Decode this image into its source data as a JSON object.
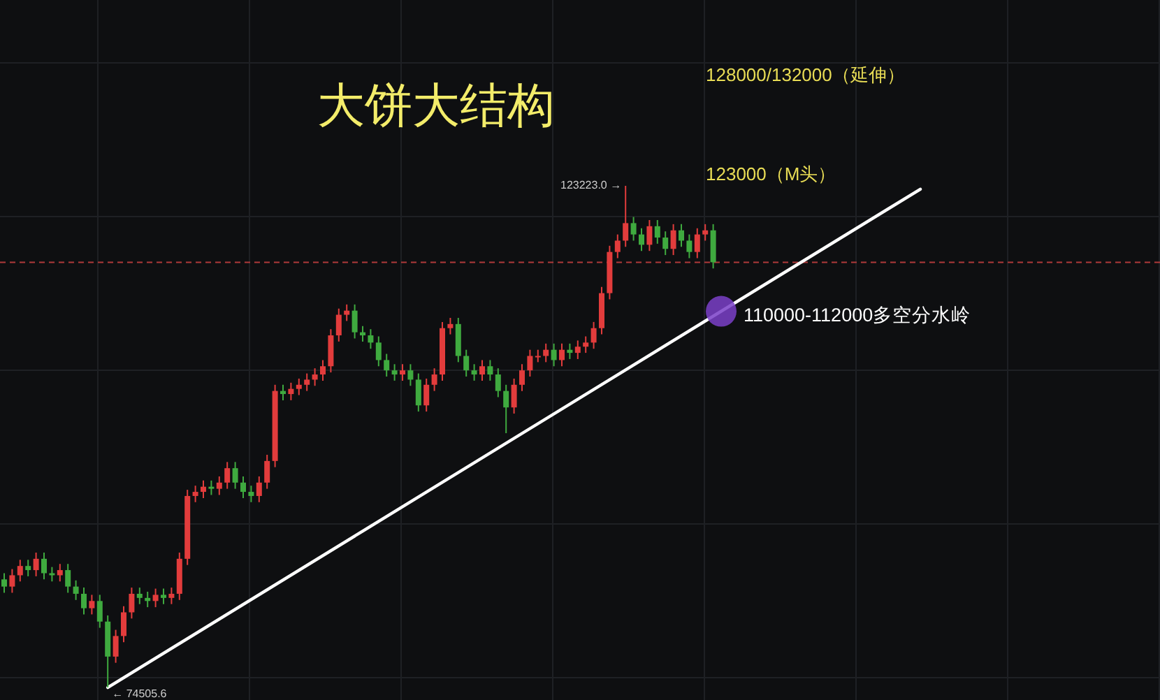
{
  "chart_data": {
    "type": "candlestick",
    "title": "大饼大结构",
    "categories": [
      null,
      null,
      null,
      null,
      null,
      null,
      null,
      null,
      null,
      null,
      null,
      null,
      null,
      null,
      null,
      null,
      null,
      null,
      null,
      null,
      null,
      null,
      null,
      null,
      null,
      null,
      null,
      null,
      null,
      null,
      null,
      null,
      null,
      null,
      null,
      null,
      null,
      null,
      null,
      null,
      null,
      null,
      null,
      null,
      null,
      null,
      null,
      null,
      null,
      null,
      null,
      null,
      null,
      null,
      null,
      null,
      null,
      null,
      null,
      null,
      null,
      null,
      null,
      null,
      null,
      null,
      null,
      null,
      null,
      null,
      null,
      null,
      null,
      null,
      null,
      null,
      null,
      null,
      null,
      null,
      null,
      null,
      null,
      null,
      null,
      null,
      null,
      null,
      null,
      null,
      null,
      null,
      null,
      null,
      null,
      null,
      null,
      null,
      null,
      null,
      null,
      null,
      null,
      null,
      null,
      null,
      null,
      null,
      null,
      null,
      null,
      null,
      null,
      null,
      null,
      null
    ],
    "ohlc": [
      [
        85000,
        85600,
        83700,
        84300
      ],
      [
        84300,
        86000,
        83700,
        85400
      ],
      [
        85400,
        86900,
        84800,
        86300
      ],
      [
        86300,
        86900,
        85300,
        85900
      ],
      [
        85900,
        87600,
        85300,
        87000
      ],
      [
        87000,
        87600,
        85000,
        85600
      ],
      [
        85600,
        86200,
        84800,
        85400
      ],
      [
        85400,
        86500,
        84800,
        85900
      ],
      [
        85900,
        86500,
        83700,
        84300
      ],
      [
        84300,
        84900,
        83000,
        83600
      ],
      [
        83600,
        84200,
        81600,
        82200
      ],
      [
        82200,
        83500,
        81600,
        82900
      ],
      [
        82900,
        83500,
        80300,
        80900
      ],
      [
        80900,
        81500,
        74505.6,
        77500
      ],
      [
        77500,
        80100,
        76900,
        79500
      ],
      [
        79500,
        82400,
        78900,
        81800
      ],
      [
        81800,
        84200,
        81200,
        83600
      ],
      [
        83600,
        84200,
        82600,
        83200
      ],
      [
        83200,
        83800,
        82300,
        82900
      ],
      [
        82900,
        84100,
        82300,
        83500
      ],
      [
        83500,
        84100,
        82600,
        83200
      ],
      [
        83200,
        84200,
        82600,
        83600
      ],
      [
        83600,
        87600,
        83000,
        87000
      ],
      [
        87000,
        93700,
        86400,
        93100
      ],
      [
        93100,
        94100,
        92500,
        93500
      ],
      [
        93500,
        94600,
        92900,
        94000
      ],
      [
        94000,
        94600,
        93200,
        93800
      ],
      [
        93800,
        95000,
        93200,
        94400
      ],
      [
        94400,
        96400,
        93800,
        95800
      ],
      [
        95800,
        96400,
        93800,
        94400
      ],
      [
        94400,
        95000,
        92900,
        93500
      ],
      [
        93500,
        94100,
        92500,
        93100
      ],
      [
        93100,
        95000,
        92500,
        94400
      ],
      [
        94400,
        97100,
        93800,
        96500
      ],
      [
        96500,
        103900,
        95900,
        103300
      ],
      [
        103300,
        103900,
        102400,
        103000
      ],
      [
        103000,
        104100,
        102400,
        103500
      ],
      [
        103500,
        104500,
        102900,
        103900
      ],
      [
        103900,
        105000,
        103300,
        104400
      ],
      [
        104400,
        105500,
        103800,
        104900
      ],
      [
        104900,
        106300,
        104300,
        105700
      ],
      [
        105700,
        109300,
        105100,
        108700
      ],
      [
        108700,
        111300,
        108100,
        110700
      ],
      [
        110700,
        111700,
        110100,
        111100
      ],
      [
        111100,
        111700,
        108400,
        109000
      ],
      [
        109000,
        109600,
        108100,
        108700
      ],
      [
        108700,
        109300,
        107400,
        108000
      ],
      [
        108000,
        108600,
        105700,
        106300
      ],
      [
        106300,
        106900,
        104700,
        105300
      ],
      [
        105300,
        105900,
        104300,
        104900
      ],
      [
        104900,
        105900,
        104300,
        105300
      ],
      [
        105300,
        105900,
        103800,
        104400
      ],
      [
        104400,
        105000,
        101300,
        101900
      ],
      [
        101900,
        104500,
        101300,
        103900
      ],
      [
        103900,
        105500,
        103300,
        104900
      ],
      [
        104900,
        110000,
        104300,
        109400
      ],
      [
        109400,
        110400,
        108800,
        109800
      ],
      [
        109800,
        110400,
        106100,
        106700
      ],
      [
        106700,
        107300,
        104700,
        105300
      ],
      [
        105300,
        105900,
        104300,
        104900
      ],
      [
        104900,
        106300,
        104300,
        105700
      ],
      [
        105700,
        106300,
        104300,
        104900
      ],
      [
        104900,
        105500,
        102700,
        103300
      ],
      [
        103300,
        103900,
        99200,
        101700
      ],
      [
        101700,
        104500,
        101100,
        103900
      ],
      [
        103900,
        105900,
        103300,
        105300
      ],
      [
        105300,
        107300,
        104700,
        106700
      ],
      [
        106700,
        107300,
        106100,
        106700
      ],
      [
        106700,
        107900,
        106100,
        107300
      ],
      [
        107300,
        107900,
        105700,
        106300
      ],
      [
        106300,
        107900,
        105700,
        107300
      ],
      [
        107300,
        107900,
        106400,
        107000
      ],
      [
        107000,
        108200,
        106400,
        107600
      ],
      [
        107600,
        108600,
        107000,
        108000
      ],
      [
        108000,
        110000,
        107400,
        109400
      ],
      [
        109400,
        113400,
        108800,
        112800
      ],
      [
        112800,
        117400,
        112200,
        116800
      ],
      [
        116800,
        118500,
        116200,
        117900
      ],
      [
        117900,
        123223,
        117300,
        119600
      ],
      [
        119600,
        120200,
        117900,
        118500
      ],
      [
        118500,
        119100,
        116900,
        117500
      ],
      [
        117500,
        119900,
        116900,
        119300
      ],
      [
        119300,
        119900,
        117600,
        118200
      ],
      [
        118200,
        118800,
        116500,
        117100
      ],
      [
        117100,
        119500,
        116500,
        118900
      ],
      [
        118900,
        119500,
        117300,
        117900
      ],
      [
        117900,
        118500,
        116200,
        116800
      ],
      [
        116800,
        119100,
        116200,
        118500
      ],
      [
        118500,
        119500,
        117900,
        118900
      ],
      [
        118900,
        119500,
        115200,
        115800
      ],
      null,
      null,
      null,
      null,
      null,
      null,
      null,
      null,
      null,
      null,
      null,
      null,
      null,
      null,
      null,
      null,
      null,
      null,
      null,
      null,
      null,
      null,
      null,
      null,
      null,
      null
    ],
    "colors": [
      "#3faa3f",
      "#e23c3c",
      "#e23c3c",
      "#3faa3f",
      "#e23c3c",
      "#3faa3f",
      "#3faa3f",
      "#e23c3c",
      "#3faa3f",
      "#3faa3f",
      "#3faa3f",
      "#e23c3c",
      "#3faa3f",
      "#3faa3f",
      "#e23c3c",
      "#e23c3c",
      "#e23c3c",
      "#3faa3f",
      "#3faa3f",
      "#e23c3c",
      "#3faa3f",
      "#e23c3c",
      "#e23c3c",
      "#e23c3c",
      "#e23c3c",
      "#e23c3c",
      "#3faa3f",
      "#e23c3c",
      "#e23c3c",
      "#3faa3f",
      "#3faa3f",
      "#3faa3f",
      "#e23c3c",
      "#e23c3c",
      "#e23c3c",
      "#3faa3f",
      "#e23c3c",
      "#e23c3c",
      "#e23c3c",
      "#e23c3c",
      "#e23c3c",
      "#e23c3c",
      "#e23c3c",
      "#e23c3c",
      "#3faa3f",
      "#3faa3f",
      "#3faa3f",
      "#3faa3f",
      "#3faa3f",
      "#3faa3f",
      "#e23c3c",
      "#3faa3f",
      "#3faa3f",
      "#e23c3c",
      "#e23c3c",
      "#e23c3c",
      "#e23c3c",
      "#3faa3f",
      "#3faa3f",
      "#3faa3f",
      "#e23c3c",
      "#3faa3f",
      "#3faa3f",
      "#3faa3f",
      "#e23c3c",
      "#e23c3c",
      "#e23c3c",
      "#e23c3c",
      "#e23c3c",
      "#3faa3f",
      "#e23c3c",
      "#3faa3f",
      "#e23c3c",
      "#e23c3c",
      "#e23c3c",
      "#e23c3c",
      "#e23c3c",
      "#e23c3c",
      "#e23c3c",
      "#3faa3f",
      "#3faa3f",
      "#e23c3c",
      "#3faa3f",
      "#3faa3f",
      "#e23c3c",
      "#3faa3f",
      "#3faa3f",
      "#e23c3c",
      "#e23c3c",
      "#3faa3f",
      null,
      null,
      null,
      null,
      null,
      null,
      null,
      null,
      null,
      null,
      null,
      null,
      null,
      null,
      null,
      null,
      null,
      null,
      null,
      null,
      null,
      null,
      null,
      null,
      null,
      null
    ],
    "series": [
      {
        "type": "line",
        "color": "#ffffff",
        "values": [
          null,
          null,
          null,
          null,
          null,
          null,
          null,
          null,
          null,
          null,
          null,
          null,
          null,
          74500,
          null,
          null,
          null,
          null,
          null,
          null,
          null,
          null,
          null,
          null,
          null,
          null,
          null,
          null,
          null,
          null,
          null,
          null,
          null,
          null,
          null,
          null,
          null,
          null,
          null,
          null,
          null,
          null,
          null,
          null,
          null,
          null,
          null,
          null,
          null,
          null,
          null,
          null,
          null,
          null,
          null,
          null,
          null,
          null,
          null,
          null,
          null,
          null,
          null,
          null,
          null,
          null,
          null,
          null,
          null,
          null,
          null,
          null,
          null,
          null,
          null,
          null,
          null,
          null,
          null,
          null,
          null,
          null,
          null,
          null,
          null,
          null,
          null,
          null,
          null,
          null,
          null,
          null,
          null,
          null,
          null,
          null,
          null,
          null,
          null,
          null,
          null,
          null,
          null,
          null,
          null,
          null,
          null,
          null,
          null,
          null,
          null,
          null,
          null,
          null,
          null,
          122900
        ]
      }
    ],
    "ref_lines": [
      {
        "axis": "y",
        "value": 115800,
        "color": "#b03a3a",
        "line_style": "dashed"
      }
    ],
    "annotations": [
      "128000/132000（延伸）",
      "123000（M头）",
      "110000-112000多空分水岭",
      "123223.0 →",
      "← 74505.6"
    ],
    "grid": true
  }
}
